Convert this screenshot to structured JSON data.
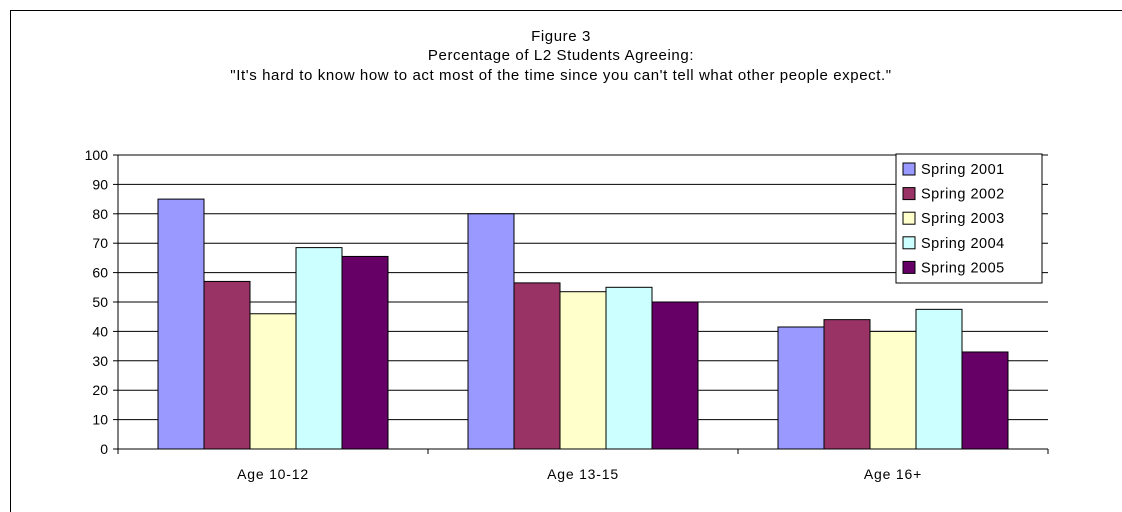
{
  "chart_data": {
    "type": "bar",
    "title_lines": [
      "Figure 3",
      "Percentage of L2 Students Agreeing:",
      "\"It's hard to know how to act most of the time since you can't tell what other people expect.\""
    ],
    "categories": [
      "Age 10-12",
      "Age 13-15",
      "Age 16+"
    ],
    "series": [
      {
        "name": "Spring 2001",
        "color": "#9999FF",
        "values": [
          85,
          80,
          41.5
        ]
      },
      {
        "name": "Spring 2002",
        "color": "#993366",
        "values": [
          57,
          56.5,
          44
        ]
      },
      {
        "name": "Spring 2003",
        "color": "#FFFFCC",
        "values": [
          46,
          53.5,
          40
        ]
      },
      {
        "name": "Spring 2004",
        "color": "#CCFFFF",
        "values": [
          68.5,
          55,
          47.5
        ]
      },
      {
        "name": "Spring 2005",
        "color": "#660066",
        "values": [
          65.5,
          50,
          33
        ]
      }
    ],
    "ylim": [
      0,
      100
    ],
    "yticks": [
      0,
      10,
      20,
      30,
      40,
      50,
      60,
      70,
      80,
      90,
      100
    ],
    "grid": true,
    "legend": "top-right"
  }
}
